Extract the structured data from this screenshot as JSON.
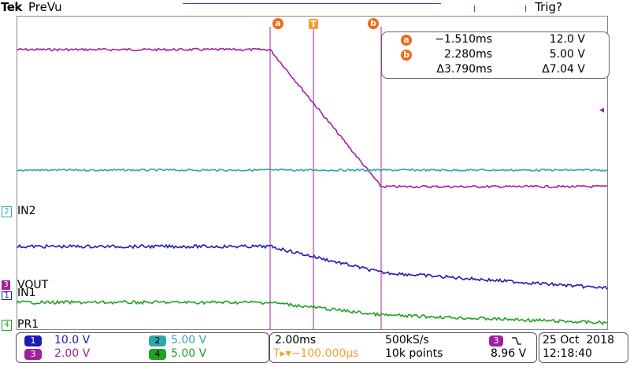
{
  "header": {
    "brand": "Tek",
    "acquisition_state": "PreVu",
    "trigger_status": "Trig?"
  },
  "cursors": {
    "a_label": "a",
    "b_label": "b",
    "trigger_label": "T",
    "readout": {
      "a_time": "−1.510ms",
      "a_value": "12.0 V",
      "b_time": "2.280ms",
      "b_value": "5.00 V",
      "delta_time": "Δ3.790ms",
      "delta_value": "Δ7.04 V"
    }
  },
  "channels": [
    {
      "id": "1",
      "name": "IN1",
      "color": "#1c1cb4",
      "scale": "10.0 V"
    },
    {
      "id": "2",
      "name": "IN2",
      "color": "#2aa8b0",
      "scale": "5.00 V"
    },
    {
      "id": "3",
      "name": "VOUT",
      "color": "#a020a0",
      "scale": "2.00 V"
    },
    {
      "id": "4",
      "name": "PR1",
      "color": "#22a022",
      "scale": "5.00 V"
    }
  ],
  "timebase": {
    "scale": "2.00ms",
    "sample_rate": "500kS/s",
    "trigger_offset": "T▸▾−100.000µs",
    "record_length": "10k points",
    "trigger_source": "3",
    "trigger_slope_icon": "falling-edge",
    "trigger_level": "8.96 V"
  },
  "datetime": {
    "date": "25 Oct  2018",
    "time": "12:18:40"
  },
  "waveforms": {
    "vout_ch3": {
      "color": "#a020a0"
    },
    "in2_ch2": {
      "color": "#2aa8b0"
    },
    "in1_ch1": {
      "color": "#1c1cb4"
    },
    "pr1_ch4": {
      "color": "#22a022"
    }
  }
}
